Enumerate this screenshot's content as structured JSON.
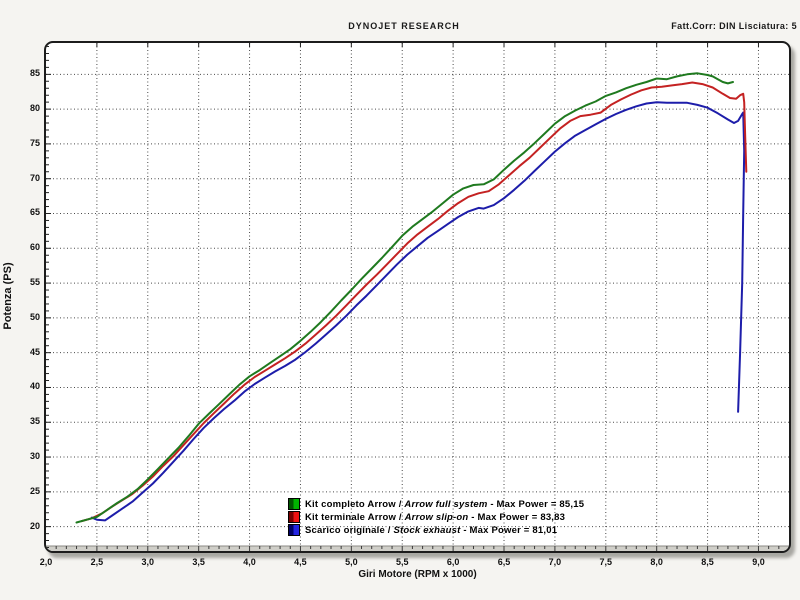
{
  "header": {
    "title": "DYNOJET RESEARCH",
    "right_info": "Fatt.Corr: DIN  Lisciatura: 5"
  },
  "chart_data": {
    "type": "line",
    "title": "DYNOJET RESEARCH",
    "xlabel": "Giri Motore (RPM x 1000)",
    "ylabel": "Potenza (PS)",
    "xlim": [
      2.0,
      9.3
    ],
    "ylim": [
      16.5,
      89.5
    ],
    "grid": "dotted",
    "legend_position": "bottom-center-inside",
    "x_ticks": [
      {
        "v": 2.0,
        "label": "2,0"
      },
      {
        "v": 2.5,
        "label": "2,5"
      },
      {
        "v": 3.0,
        "label": "3,0"
      },
      {
        "v": 3.5,
        "label": "3,5"
      },
      {
        "v": 4.0,
        "label": "4,0"
      },
      {
        "v": 4.5,
        "label": "4,5"
      },
      {
        "v": 5.0,
        "label": "5,0"
      },
      {
        "v": 5.5,
        "label": "5,5"
      },
      {
        "v": 6.0,
        "label": "6,0"
      },
      {
        "v": 6.5,
        "label": "6,5"
      },
      {
        "v": 7.0,
        "label": "7,0"
      },
      {
        "v": 7.5,
        "label": "7,5"
      },
      {
        "v": 8.0,
        "label": "8,0"
      },
      {
        "v": 8.5,
        "label": "8,5"
      },
      {
        "v": 9.0,
        "label": "9,0"
      }
    ],
    "y_ticks": [
      {
        "v": 20,
        "label": "20"
      },
      {
        "v": 25,
        "label": "25"
      },
      {
        "v": 30,
        "label": "30"
      },
      {
        "v": 35,
        "label": "35"
      },
      {
        "v": 40,
        "label": "40"
      },
      {
        "v": 45,
        "label": "45"
      },
      {
        "v": 50,
        "label": "50"
      },
      {
        "v": 55,
        "label": "55"
      },
      {
        "v": 60,
        "label": "60"
      },
      {
        "v": 65,
        "label": "65"
      },
      {
        "v": 70,
        "label": "70"
      },
      {
        "v": 75,
        "label": "75"
      },
      {
        "v": 80,
        "label": "80"
      },
      {
        "v": 85,
        "label": "85"
      }
    ],
    "series": [
      {
        "name_it": "Scarico originale",
        "name_en": "Stock exhaust",
        "max_power_label": "Max Power = 81,01",
        "max_power": 81.01,
        "color": "#1d1daa",
        "chip_colors": [
          "#000066",
          "#2323e0"
        ],
        "points": [
          [
            2.45,
            21.3
          ],
          [
            2.5,
            21.0
          ],
          [
            2.58,
            20.9
          ],
          [
            2.65,
            21.6
          ],
          [
            2.75,
            22.6
          ],
          [
            2.85,
            23.6
          ],
          [
            2.95,
            24.9
          ],
          [
            3.05,
            26.2
          ],
          [
            3.15,
            27.7
          ],
          [
            3.25,
            29.3
          ],
          [
            3.35,
            30.9
          ],
          [
            3.45,
            32.6
          ],
          [
            3.55,
            34.2
          ],
          [
            3.65,
            35.6
          ],
          [
            3.75,
            36.9
          ],
          [
            3.85,
            38.1
          ],
          [
            3.95,
            39.4
          ],
          [
            4.05,
            40.5
          ],
          [
            4.15,
            41.4
          ],
          [
            4.25,
            42.3
          ],
          [
            4.35,
            43.1
          ],
          [
            4.45,
            44.0
          ],
          [
            4.55,
            45.1
          ],
          [
            4.65,
            46.3
          ],
          [
            4.75,
            47.6
          ],
          [
            4.85,
            48.9
          ],
          [
            4.95,
            50.3
          ],
          [
            5.05,
            51.8
          ],
          [
            5.15,
            53.2
          ],
          [
            5.25,
            54.7
          ],
          [
            5.35,
            56.2
          ],
          [
            5.45,
            57.7
          ],
          [
            5.55,
            59.1
          ],
          [
            5.65,
            60.3
          ],
          [
            5.75,
            61.5
          ],
          [
            5.85,
            62.5
          ],
          [
            5.95,
            63.5
          ],
          [
            6.05,
            64.5
          ],
          [
            6.15,
            65.3
          ],
          [
            6.25,
            65.8
          ],
          [
            6.3,
            65.7
          ],
          [
            6.4,
            66.2
          ],
          [
            6.5,
            67.2
          ],
          [
            6.6,
            68.4
          ],
          [
            6.7,
            69.7
          ],
          [
            6.8,
            71.1
          ],
          [
            6.9,
            72.5
          ],
          [
            7.0,
            73.9
          ],
          [
            7.1,
            75.1
          ],
          [
            7.2,
            76.2
          ],
          [
            7.3,
            77.0
          ],
          [
            7.4,
            77.8
          ],
          [
            7.5,
            78.6
          ],
          [
            7.6,
            79.3
          ],
          [
            7.7,
            79.9
          ],
          [
            7.8,
            80.4
          ],
          [
            7.9,
            80.8
          ],
          [
            8.0,
            81.0
          ],
          [
            8.1,
            80.9
          ],
          [
            8.2,
            80.9
          ],
          [
            8.3,
            80.9
          ],
          [
            8.4,
            80.6
          ],
          [
            8.5,
            80.2
          ],
          [
            8.6,
            79.4
          ],
          [
            8.7,
            78.5
          ],
          [
            8.76,
            78.0
          ],
          [
            8.8,
            78.3
          ],
          [
            8.84,
            79.3
          ],
          [
            8.85,
            79.5
          ],
          [
            8.86,
            74.0
          ],
          [
            8.85,
            65.0
          ],
          [
            8.84,
            55.0
          ],
          [
            8.82,
            45.0
          ],
          [
            8.8,
            36.5
          ]
        ]
      },
      {
        "name_it": "Kit terminale Arrow",
        "name_en": "Arrow slip-on",
        "max_power_label": "Max Power = 83,83",
        "max_power": 83.83,
        "color": "#c42222",
        "chip_colors": [
          "#770000",
          "#ee1111"
        ],
        "points": [
          [
            2.35,
            20.8
          ],
          [
            2.45,
            21.2
          ],
          [
            2.55,
            21.9
          ],
          [
            2.65,
            22.9
          ],
          [
            2.75,
            23.8
          ],
          [
            2.85,
            24.7
          ],
          [
            2.95,
            25.9
          ],
          [
            3.05,
            27.2
          ],
          [
            3.15,
            28.7
          ],
          [
            3.25,
            30.1
          ],
          [
            3.35,
            31.7
          ],
          [
            3.45,
            33.3
          ],
          [
            3.55,
            34.9
          ],
          [
            3.65,
            36.3
          ],
          [
            3.75,
            37.7
          ],
          [
            3.85,
            39.1
          ],
          [
            3.95,
            40.4
          ],
          [
            4.05,
            41.5
          ],
          [
            4.15,
            42.4
          ],
          [
            4.25,
            43.3
          ],
          [
            4.35,
            44.2
          ],
          [
            4.45,
            45.2
          ],
          [
            4.55,
            46.3
          ],
          [
            4.65,
            47.6
          ],
          [
            4.75,
            48.9
          ],
          [
            4.85,
            50.3
          ],
          [
            4.95,
            51.8
          ],
          [
            5.05,
            53.3
          ],
          [
            5.15,
            54.8
          ],
          [
            5.25,
            56.2
          ],
          [
            5.35,
            57.7
          ],
          [
            5.45,
            59.2
          ],
          [
            5.55,
            60.7
          ],
          [
            5.65,
            62.0
          ],
          [
            5.75,
            63.1
          ],
          [
            5.85,
            64.2
          ],
          [
            5.95,
            65.4
          ],
          [
            6.05,
            66.5
          ],
          [
            6.15,
            67.4
          ],
          [
            6.25,
            67.9
          ],
          [
            6.35,
            68.2
          ],
          [
            6.45,
            69.2
          ],
          [
            6.55,
            70.5
          ],
          [
            6.65,
            71.8
          ],
          [
            6.75,
            73.0
          ],
          [
            6.85,
            74.4
          ],
          [
            6.95,
            75.8
          ],
          [
            7.05,
            77.2
          ],
          [
            7.15,
            78.3
          ],
          [
            7.25,
            79.0
          ],
          [
            7.35,
            79.2
          ],
          [
            7.45,
            79.5
          ],
          [
            7.55,
            80.6
          ],
          [
            7.65,
            81.4
          ],
          [
            7.75,
            82.1
          ],
          [
            7.85,
            82.7
          ],
          [
            7.95,
            83.1
          ],
          [
            8.05,
            83.2
          ],
          [
            8.15,
            83.4
          ],
          [
            8.25,
            83.6
          ],
          [
            8.35,
            83.83
          ],
          [
            8.45,
            83.6
          ],
          [
            8.55,
            83.1
          ],
          [
            8.65,
            82.2
          ],
          [
            8.72,
            81.6
          ],
          [
            8.78,
            81.5
          ],
          [
            8.82,
            82.0
          ],
          [
            8.85,
            82.2
          ],
          [
            8.86,
            81.0
          ],
          [
            8.87,
            76.0
          ],
          [
            8.88,
            71.0
          ]
        ]
      },
      {
        "name_it": "Kit completo Arrow",
        "name_en": "Arrow full system",
        "max_power_label": "Max Power = 85,15",
        "max_power": 85.15,
        "color": "#1f7a1f",
        "chip_colors": [
          "#005500",
          "#00b400"
        ],
        "points": [
          [
            2.3,
            20.6
          ],
          [
            2.4,
            21.0
          ],
          [
            2.5,
            21.4
          ],
          [
            2.6,
            22.4
          ],
          [
            2.7,
            23.4
          ],
          [
            2.8,
            24.3
          ],
          [
            2.9,
            25.4
          ],
          [
            3.0,
            26.8
          ],
          [
            3.1,
            28.3
          ],
          [
            3.2,
            29.8
          ],
          [
            3.3,
            31.3
          ],
          [
            3.4,
            33.0
          ],
          [
            3.5,
            34.8
          ],
          [
            3.6,
            36.2
          ],
          [
            3.7,
            37.6
          ],
          [
            3.8,
            39.0
          ],
          [
            3.9,
            40.4
          ],
          [
            4.0,
            41.6
          ],
          [
            4.1,
            42.5
          ],
          [
            4.2,
            43.5
          ],
          [
            4.3,
            44.5
          ],
          [
            4.4,
            45.5
          ],
          [
            4.5,
            46.7
          ],
          [
            4.6,
            48.0
          ],
          [
            4.7,
            49.4
          ],
          [
            4.8,
            50.9
          ],
          [
            4.9,
            52.5
          ],
          [
            5.0,
            54.0
          ],
          [
            5.1,
            55.6
          ],
          [
            5.2,
            57.1
          ],
          [
            5.3,
            58.6
          ],
          [
            5.4,
            60.2
          ],
          [
            5.5,
            61.8
          ],
          [
            5.6,
            63.1
          ],
          [
            5.7,
            64.2
          ],
          [
            5.8,
            65.3
          ],
          [
            5.9,
            66.5
          ],
          [
            6.0,
            67.7
          ],
          [
            6.1,
            68.6
          ],
          [
            6.2,
            69.1
          ],
          [
            6.3,
            69.2
          ],
          [
            6.4,
            69.9
          ],
          [
            6.5,
            71.3
          ],
          [
            6.6,
            72.6
          ],
          [
            6.7,
            73.8
          ],
          [
            6.8,
            75.1
          ],
          [
            6.9,
            76.5
          ],
          [
            7.0,
            77.9
          ],
          [
            7.1,
            79.0
          ],
          [
            7.2,
            79.8
          ],
          [
            7.3,
            80.5
          ],
          [
            7.4,
            81.1
          ],
          [
            7.5,
            81.9
          ],
          [
            7.6,
            82.4
          ],
          [
            7.7,
            83.0
          ],
          [
            7.8,
            83.5
          ],
          [
            7.9,
            83.9
          ],
          [
            8.0,
            84.4
          ],
          [
            8.1,
            84.3
          ],
          [
            8.2,
            84.7
          ],
          [
            8.3,
            85.0
          ],
          [
            8.4,
            85.15
          ],
          [
            8.5,
            84.9
          ],
          [
            8.55,
            84.7
          ],
          [
            8.6,
            84.3
          ],
          [
            8.65,
            83.9
          ],
          [
            8.7,
            83.7
          ],
          [
            8.75,
            83.9
          ]
        ]
      }
    ],
    "legend_order": [
      2,
      1,
      0
    ]
  }
}
